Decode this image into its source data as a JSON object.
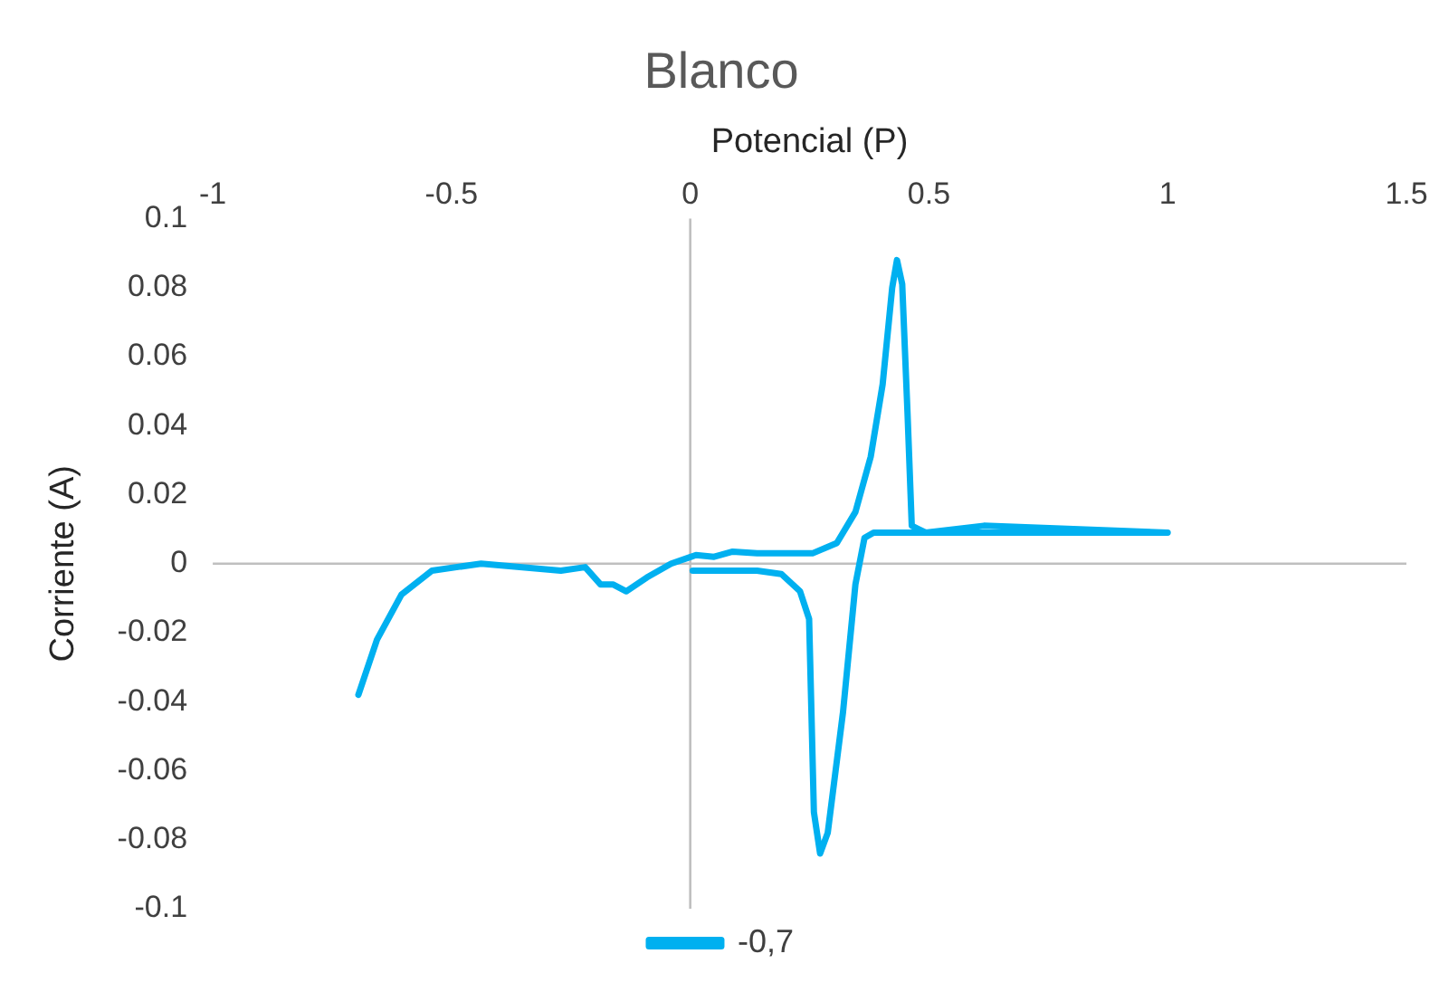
{
  "chart_data": {
    "type": "line",
    "title": "Blanco",
    "xlabel": "Potencial (P)",
    "ylabel": "Corriente (A)",
    "x": [
      -0.695,
      -0.656,
      -0.605,
      -0.541,
      -0.438,
      -0.271,
      -0.22,
      -0.188,
      -0.162,
      -0.134,
      -0.091,
      -0.04,
      0.012,
      0.05,
      0.089,
      0.14,
      0.256,
      0.307,
      0.346,
      0.378,
      0.403,
      0.423,
      0.433,
      0.444,
      0.455,
      0.464,
      0.493,
      0.615,
      1.0,
      0.384,
      0.365,
      0.346,
      0.32,
      0.288,
      0.272,
      0.259,
      0.249,
      0.23,
      0.191,
      0.14,
      0.005
    ],
    "series": [
      {
        "name": "-0,7",
        "color": "#00b0f0",
        "values": [
          -0.038,
          -0.022,
          -0.009,
          -0.002,
          0,
          -0.002,
          -0.001,
          -0.006,
          -0.006,
          -0.008,
          -0.004,
          0,
          0.0025,
          0.002,
          0.0035,
          0.003,
          0.003,
          0.006,
          0.015,
          0.031,
          0.052,
          0.08,
          0.088,
          0.081,
          0.044,
          0.011,
          0.009,
          0.011,
          0.009,
          0.009,
          0.0075,
          -0.006,
          -0.043,
          -0.078,
          -0.084,
          -0.072,
          -0.016,
          -0.008,
          -0.003,
          -0.002,
          -0.002
        ]
      }
    ],
    "xlim": [
      -1,
      1.5
    ],
    "xticks": [
      -1,
      -0.5,
      0,
      0.5,
      1,
      1.5
    ],
    "ylim": [
      -0.1,
      0.1
    ],
    "yticks": [
      -0.1,
      -0.08,
      -0.06,
      -0.04,
      -0.02,
      0,
      0.02,
      0.04,
      0.06,
      0.08,
      0.1
    ],
    "legend": "bottom"
  }
}
